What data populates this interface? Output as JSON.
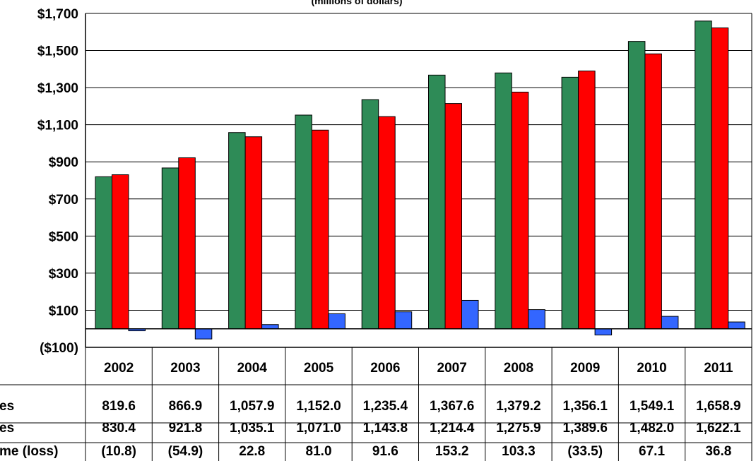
{
  "chart_data": {
    "type": "bar",
    "subtitle": "(millions of dollars)",
    "categories": [
      "2002",
      "2003",
      "2004",
      "2005",
      "2006",
      "2007",
      "2008",
      "2009",
      "2010",
      "2011"
    ],
    "y_tick_labels": [
      "$1,700",
      "$1,500",
      "$1,300",
      "$1,100",
      "$900",
      "$700",
      "$500",
      "$300",
      "$100",
      "($100)"
    ],
    "y_tick_values": [
      1700,
      1500,
      1300,
      1100,
      900,
      700,
      500,
      300,
      100,
      -100
    ],
    "ylim": [
      -100,
      1700
    ],
    "grid": true,
    "legend": "data table rows below chart",
    "series": [
      {
        "name": "es",
        "color": "#2e8b57",
        "values": [
          819.6,
          866.9,
          1057.9,
          1152.0,
          1235.4,
          1367.6,
          1379.2,
          1356.1,
          1549.1,
          1658.9
        ],
        "labels": [
          "819.6",
          "866.9",
          "1,057.9",
          "1,152.0",
          "1,235.4",
          "1,367.6",
          "1,379.2",
          "1,356.1",
          "1,549.1",
          "1,658.9"
        ]
      },
      {
        "name": "es",
        "color": "#ff0000",
        "values": [
          830.4,
          921.8,
          1035.1,
          1071.0,
          1143.8,
          1214.4,
          1275.9,
          1389.6,
          1482.0,
          1622.1
        ],
        "labels": [
          "830.4",
          "921.8",
          "1,035.1",
          "1,071.0",
          "1,143.8",
          "1,214.4",
          "1,275.9",
          "1,389.6",
          "1,482.0",
          "1,622.1"
        ]
      },
      {
        "name": "me (loss)",
        "color": "#3366ff",
        "values": [
          -10.8,
          -54.9,
          22.8,
          81.0,
          91.6,
          153.2,
          103.3,
          -33.5,
          67.1,
          36.8
        ],
        "labels": [
          "(10.8)",
          "(54.9)",
          "22.8",
          "81.0",
          "91.6",
          "153.2",
          "103.3",
          "(33.5)",
          "67.1",
          "36.8"
        ]
      }
    ]
  }
}
